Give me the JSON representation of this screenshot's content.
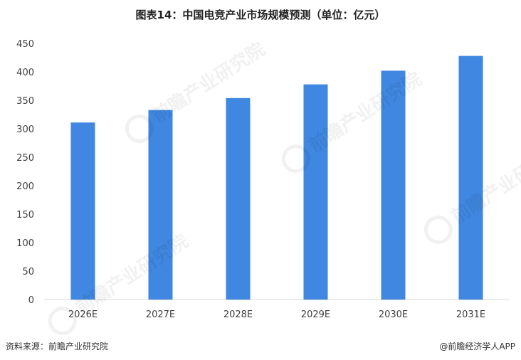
{
  "chart_data": {
    "type": "bar",
    "title": "图表14：中国电竞产业市场规模预测（单位：亿元）",
    "categories": [
      "2026E",
      "2027E",
      "2028E",
      "2029E",
      "2030E",
      "2031E"
    ],
    "values": [
      311,
      333,
      354,
      378,
      402,
      428
    ],
    "ylim": [
      0,
      450
    ],
    "yticks": [
      0,
      50,
      100,
      150,
      200,
      250,
      300,
      350,
      400,
      450
    ],
    "grid": false,
    "bar_color": "#3f87e0",
    "axis_color": "#d9d9d9"
  },
  "footer": {
    "source": "资料来源：前瞻产业研究院",
    "credit": "@前瞻经济学人APP"
  },
  "watermark": {
    "text": "前瞻产业研究院"
  }
}
